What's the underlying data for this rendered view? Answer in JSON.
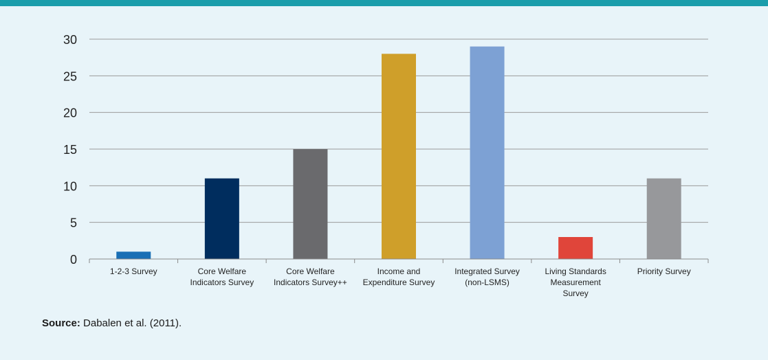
{
  "colors": {
    "top_bar": "#1a9dab",
    "background": "#e8f4f9",
    "gridline": "#9a9a9a",
    "axis": "#8a8a8a"
  },
  "source": {
    "label": "Source:",
    "text": " Dabalen et al. (2011)."
  },
  "chart_data": {
    "type": "bar",
    "categories": [
      [
        "1-2-3 Survey"
      ],
      [
        "Core Welfare",
        "Indicators Survey"
      ],
      [
        "Core Welfare",
        "Indicators Survey++"
      ],
      [
        "Income and",
        "Expenditure Survey"
      ],
      [
        "Integrated Survey",
        "(non-LSMS)"
      ],
      [
        "Living Standards",
        "Measurement",
        "Survey"
      ],
      [
        "Priority Survey"
      ]
    ],
    "values": [
      1,
      11,
      15,
      28,
      29,
      3,
      11
    ],
    "bar_colors": [
      "#1a6fb5",
      "#002d5e",
      "#6a6a6d",
      "#cf9f2a",
      "#7da1d4",
      "#e0453a",
      "#97989b"
    ],
    "ylim": [
      0,
      30
    ],
    "yticks": [
      0,
      5,
      10,
      15,
      20,
      25,
      30
    ],
    "title": "",
    "xlabel": "",
    "ylabel": "",
    "grid": true,
    "legend": "none"
  }
}
